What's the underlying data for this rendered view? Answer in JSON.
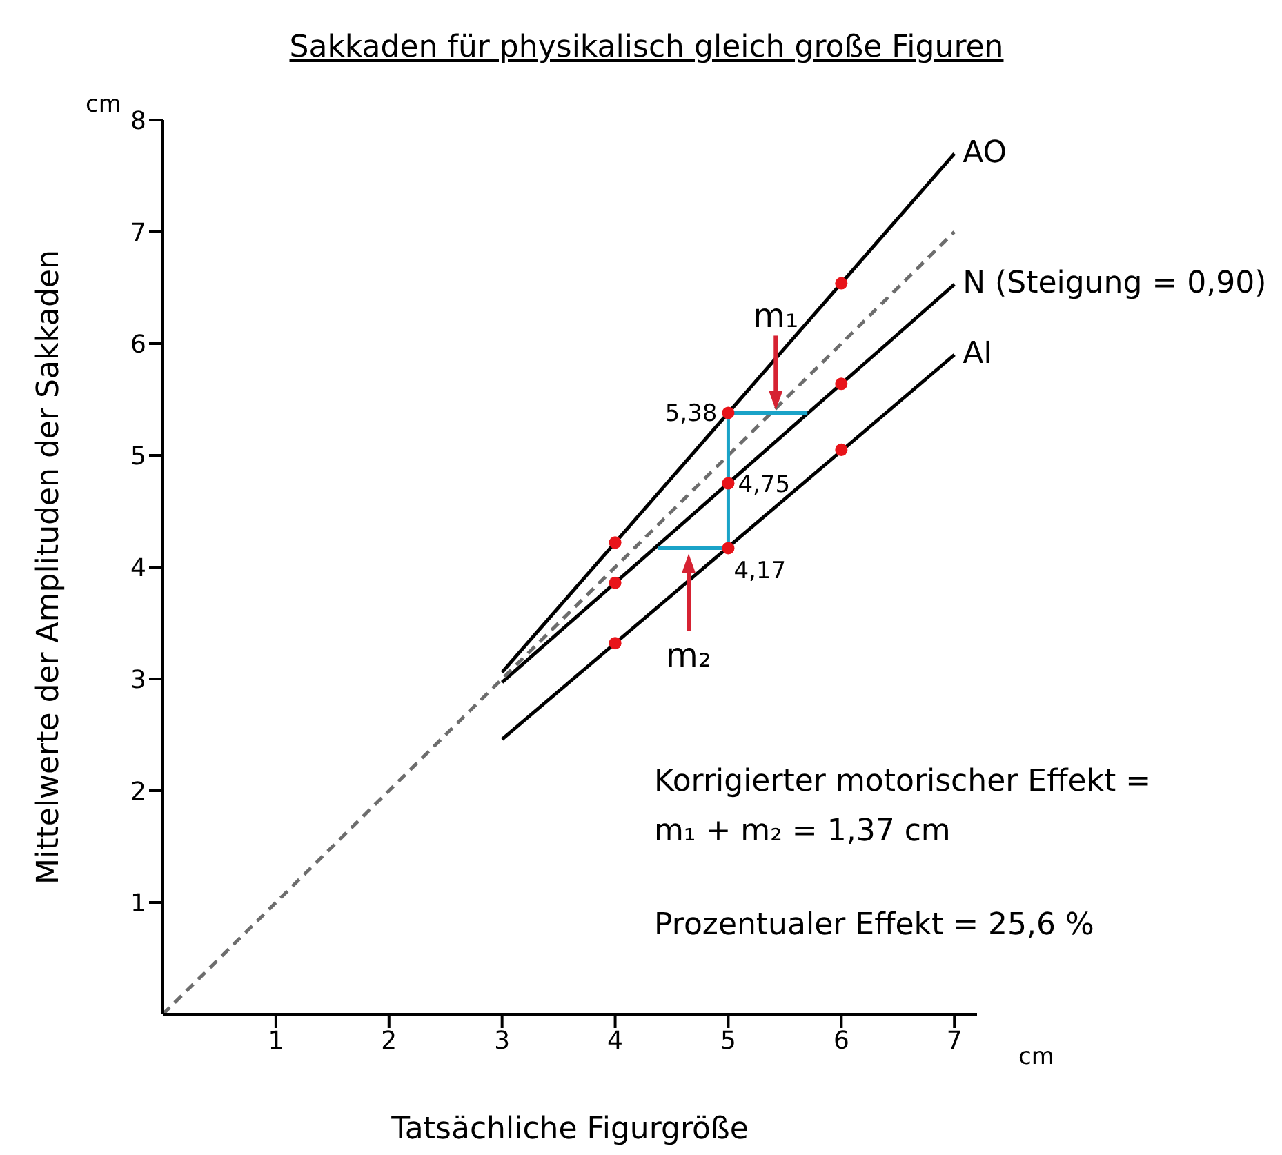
{
  "chart_data": {
    "type": "line",
    "title": "Sakkaden für physikalisch gleich große Figuren",
    "xlabel": "Tatsächliche Figurgröße",
    "ylabel": "Mittelwerte der Amplituden der Sakkaden",
    "xlim": [
      0,
      7.2
    ],
    "ylim": [
      0,
      8
    ],
    "xticks": [
      1,
      2,
      3,
      4,
      5,
      6,
      7
    ],
    "yticks": [
      1,
      2,
      3,
      4,
      5,
      6,
      7,
      8
    ],
    "grid": false,
    "legend": false,
    "series": [
      {
        "name": "AO",
        "color": "#000000",
        "x": [
          3,
          7
        ],
        "values": [
          3.06,
          7.7
        ],
        "line_style": "solid",
        "marker": "none"
      },
      {
        "name": "N (Steigung = 0,90)",
        "color": "#000000",
        "x": [
          3,
          7
        ],
        "values": [
          2.97,
          6.53
        ],
        "line_style": "solid",
        "marker": "none"
      },
      {
        "name": "AI",
        "color": "#000000",
        "x": [
          3,
          7
        ],
        "values": [
          2.46,
          5.9
        ],
        "line_style": "solid",
        "marker": "none"
      },
      {
        "color": "#6d6d6d",
        "x": [
          0,
          7
        ],
        "values": [
          0,
          7
        ],
        "line_style": "dashed",
        "marker": "none"
      },
      {
        "color": "#1aa3c8",
        "x": [
          5.7,
          5,
          5,
          4.38
        ],
        "values": [
          5.38,
          5.38,
          4.17,
          4.17
        ],
        "line_style": "solid",
        "marker": "none"
      },
      {
        "type": "scatter",
        "color": "#e8141a",
        "x": [
          4,
          5,
          6
        ],
        "values": [
          4.22,
          5.38,
          6.54
        ],
        "marker": "circle"
      },
      {
        "type": "scatter",
        "color": "#e8141a",
        "x": [
          4,
          5,
          6
        ],
        "values": [
          3.86,
          4.75,
          5.64
        ],
        "marker": "circle"
      },
      {
        "type": "scatter",
        "color": "#e8141a",
        "x": [
          4,
          5,
          6
        ],
        "values": [
          3.32,
          4.17,
          5.05
        ],
        "marker": "circle"
      }
    ],
    "annotations": [
      {
        "text": "5,38",
        "x": 5,
        "y": 5.38
      },
      {
        "text": "4,75",
        "x": 5,
        "y": 4.75
      },
      {
        "text": "4,17",
        "x": 5,
        "y": 4.17
      },
      {
        "text": "m₁",
        "x": 5.42,
        "y": 5.38
      },
      {
        "text": "m₂",
        "x": 4.65,
        "y": 4.17
      },
      "cm",
      "cm",
      "Korrigierter motorischer Effekt =",
      "m₁ + m₂ = 1,37 cm",
      "Prozentualer Effekt = 25,6 %"
    ]
  }
}
